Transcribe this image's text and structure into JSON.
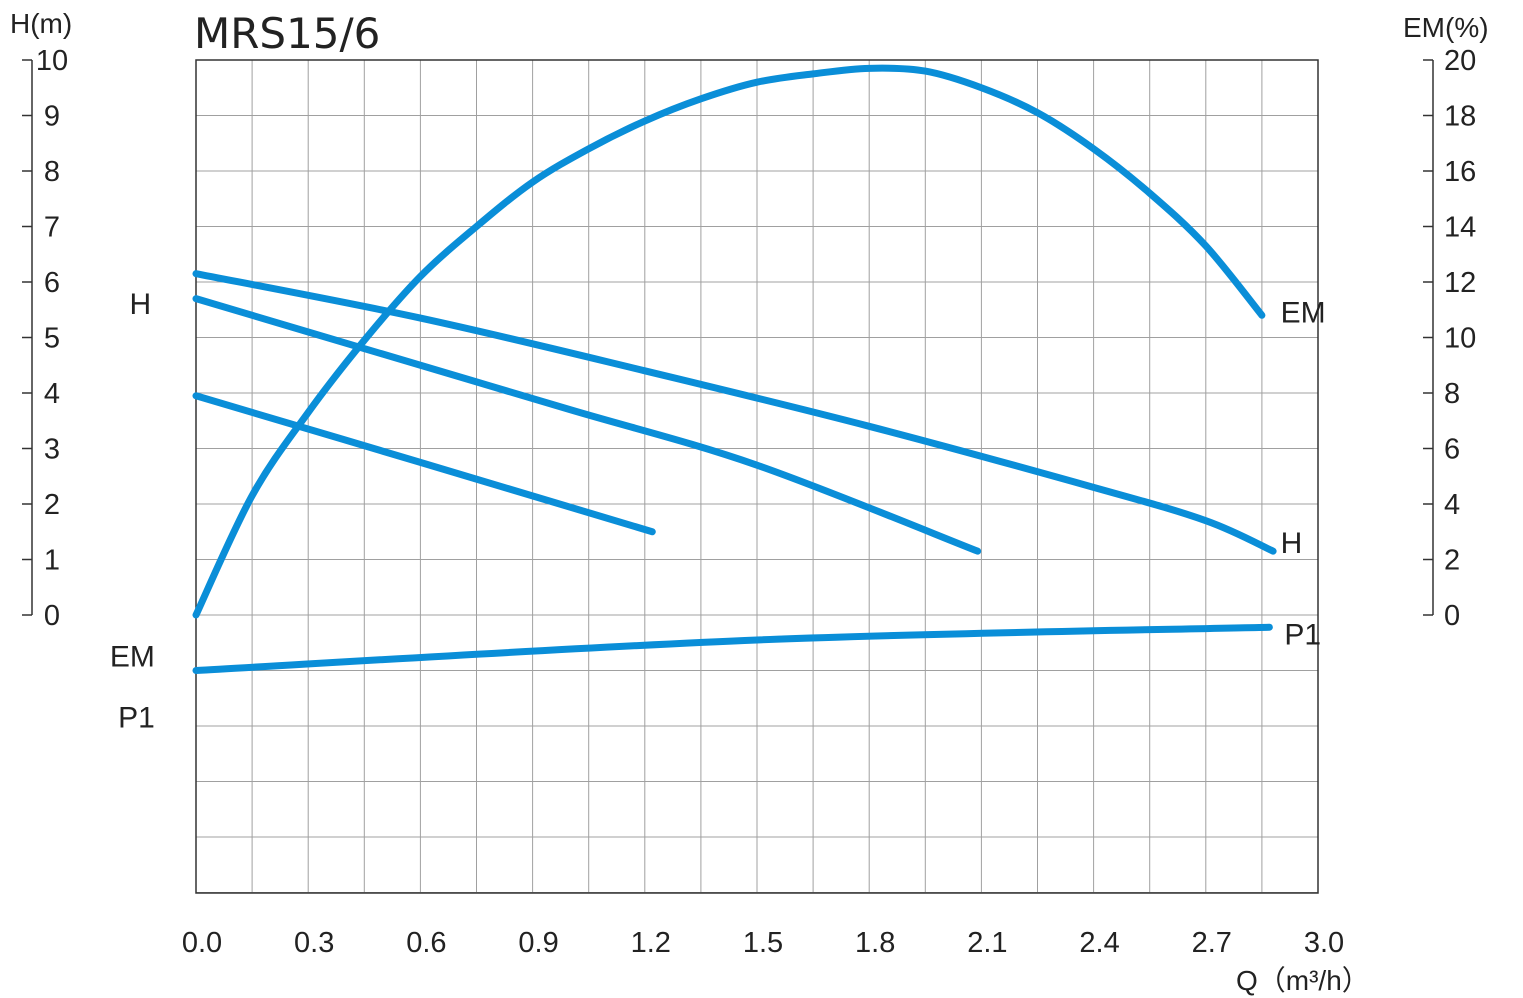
{
  "chart_data": {
    "type": "line",
    "title": "MRS15/6",
    "xlabel": "Q（m³/h）",
    "xlim": [
      0,
      3.0
    ],
    "xticks": [
      0.0,
      0.3,
      0.6,
      0.9,
      1.2,
      1.5,
      1.8,
      2.1,
      2.4,
      2.7,
      3.0
    ],
    "xtick_labels": [
      "0.0",
      "0.3",
      "0.6",
      "0.9",
      "1.2",
      "1.5",
      "1.8",
      "2.1",
      "2.4",
      "2.7",
      "3.0"
    ],
    "y_left": {
      "label": "H(m)",
      "lim": [
        0,
        10
      ],
      "ticks": [
        0,
        1,
        2,
        3,
        4,
        5,
        6,
        7,
        8,
        9,
        10
      ],
      "tick_labels": [
        "0",
        "1",
        "2",
        "3",
        "4",
        "5",
        "6",
        "7",
        "8",
        "9",
        "10"
      ]
    },
    "y_right": {
      "label": "EM(%)",
      "lim": [
        0,
        20
      ],
      "ticks": [
        0,
        2,
        4,
        6,
        8,
        10,
        12,
        14,
        16,
        18,
        20
      ],
      "tick_labels": [
        "0",
        "2",
        "4",
        "6",
        "8",
        "10",
        "12",
        "14",
        "16",
        "18",
        "20"
      ]
    },
    "grid": true,
    "series": [
      {
        "name": "H",
        "axis": "left",
        "points": [
          [
            0.0,
            6.15
          ],
          [
            0.6,
            5.35
          ],
          [
            1.2,
            4.4
          ],
          [
            1.8,
            3.4
          ],
          [
            2.4,
            2.3
          ],
          [
            2.7,
            1.7
          ],
          [
            2.88,
            1.15
          ]
        ]
      },
      {
        "name": "H",
        "axis": "left",
        "points": [
          [
            0.0,
            5.7
          ],
          [
            0.5,
            4.7
          ],
          [
            1.0,
            3.7
          ],
          [
            1.5,
            2.7
          ],
          [
            2.09,
            1.15
          ]
        ]
      },
      {
        "name": "H",
        "axis": "left",
        "points": [
          [
            0.0,
            3.95
          ],
          [
            0.6,
            2.75
          ],
          [
            1.22,
            1.5
          ]
        ]
      },
      {
        "name": "EM",
        "axis": "right",
        "points": [
          [
            0.0,
            0.0
          ],
          [
            0.15,
            4.3
          ],
          [
            0.3,
            7.3
          ],
          [
            0.45,
            9.9
          ],
          [
            0.6,
            12.2
          ],
          [
            0.75,
            14.0
          ],
          [
            0.9,
            15.6
          ],
          [
            1.05,
            16.8
          ],
          [
            1.2,
            17.8
          ],
          [
            1.35,
            18.6
          ],
          [
            1.5,
            19.2
          ],
          [
            1.65,
            19.5
          ],
          [
            1.8,
            19.7
          ],
          [
            1.95,
            19.6
          ],
          [
            2.1,
            19.0
          ],
          [
            2.25,
            18.1
          ],
          [
            2.4,
            16.8
          ],
          [
            2.55,
            15.2
          ],
          [
            2.7,
            13.3
          ],
          [
            2.85,
            10.8
          ]
        ]
      },
      {
        "name": "P1",
        "points": [
          [
            0.0,
            -1.0
          ],
          [
            1.5,
            -0.45
          ],
          [
            2.87,
            -0.22
          ]
        ]
      }
    ],
    "curve_labels": [
      {
        "text": "H",
        "side": "left",
        "q": -0.12,
        "h": 5.6
      },
      {
        "text": "EM",
        "side": "left",
        "q": -0.11,
        "h": -0.75
      },
      {
        "text": "P1",
        "side": "left",
        "q": -0.11,
        "h": -1.85
      },
      {
        "text": "EM",
        "side": "right",
        "q": 2.9,
        "h": 5.45
      },
      {
        "text": "H",
        "side": "right",
        "q": 2.9,
        "h": 1.3
      },
      {
        "text": "P1",
        "side": "right",
        "q": 2.91,
        "h": -0.35
      }
    ],
    "line_color": "#0a8ed8",
    "grid_color": "#a0a0a0"
  }
}
